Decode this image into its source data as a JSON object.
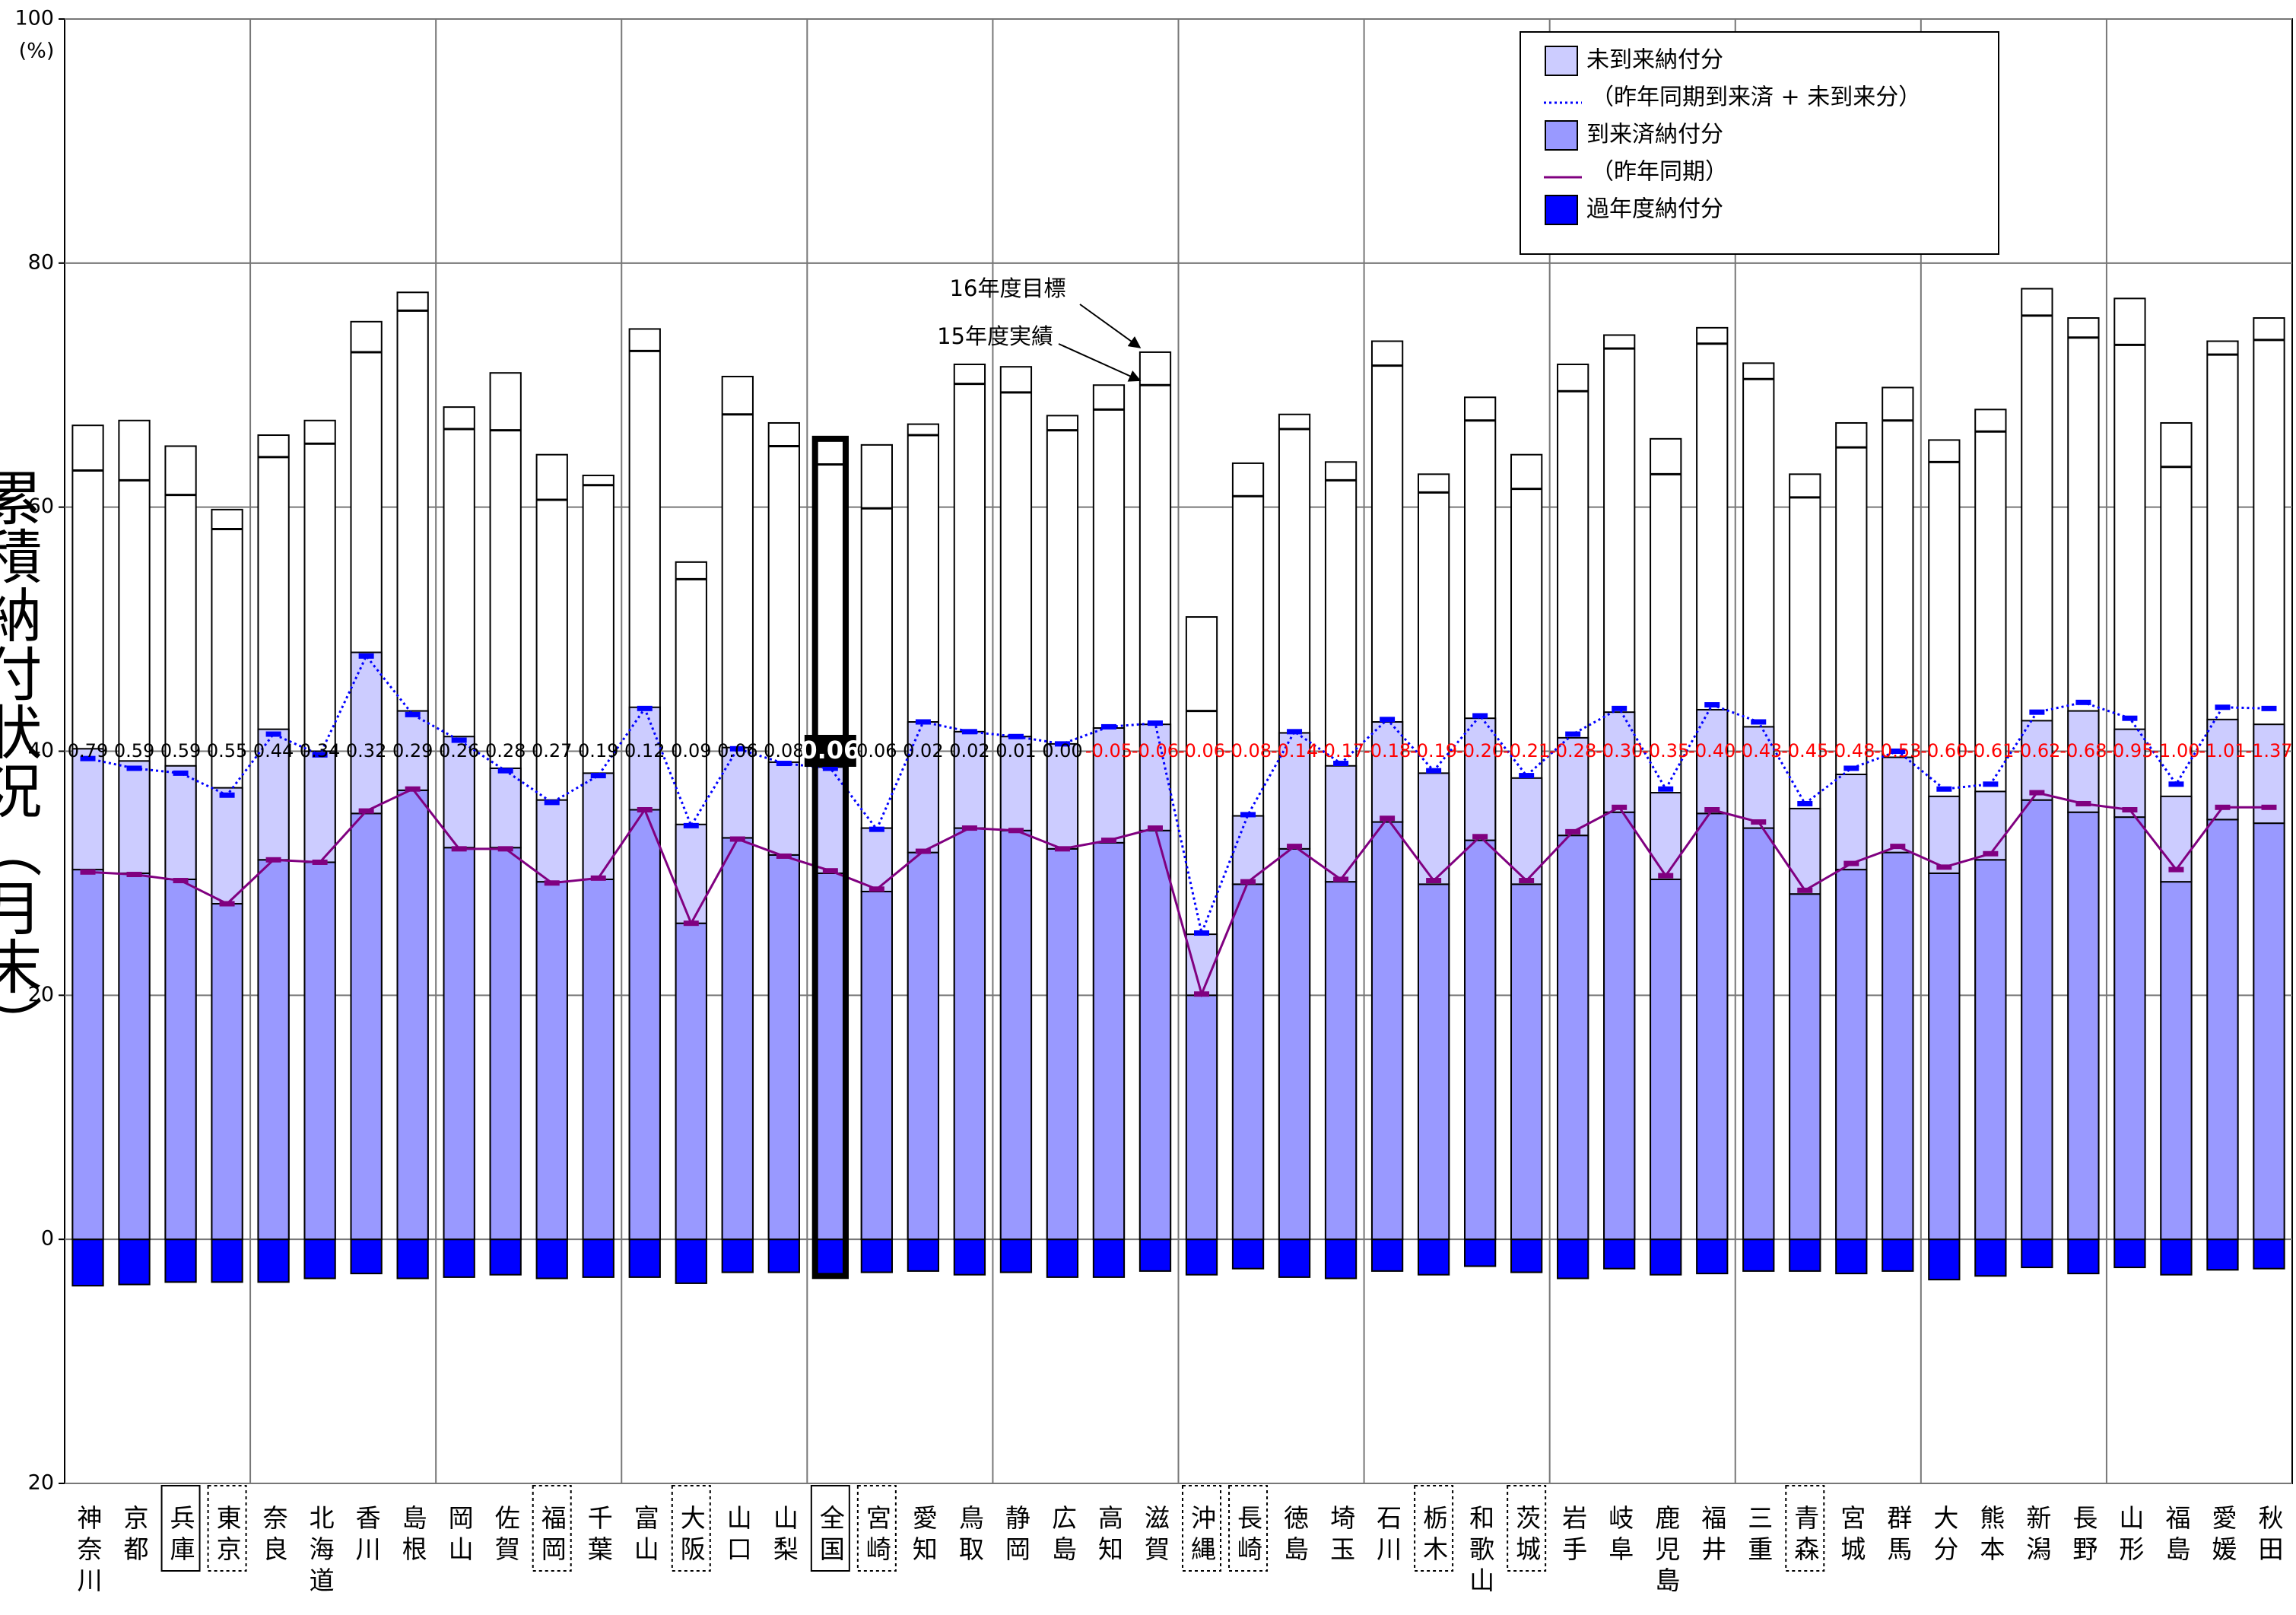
{
  "chart_data": {
    "type": "bar",
    "y_label": "累積納付状況（月末）",
    "y_unit": "(%)",
    "categories": [
      "神奈川",
      "京都",
      "兵庫",
      "東京",
      "奈良",
      "北海道",
      "香川",
      "島根",
      "岡山",
      "佐賀",
      "福岡",
      "千葉",
      "富山",
      "大阪",
      "山口",
      "山梨",
      "全国",
      "宮崎",
      "愛知",
      "鳥取",
      "静岡",
      "広島",
      "高知",
      "滋賀",
      "沖縄",
      "長崎",
      "徳島",
      "埼玉",
      "石川",
      "栃木",
      "和歌山",
      "茨城",
      "岩手",
      "岐阜",
      "鹿児島",
      "福井",
      "三重",
      "青森",
      "宮城",
      "群馬",
      "大分",
      "熊本",
      "新潟",
      "長野",
      "山形",
      "福島",
      "愛媛",
      "秋田"
    ],
    "series": [
      {
        "name": "未到来納付分",
        "type": "bar",
        "color": "#ccccff",
        "values": [
          9.9,
          9.2,
          9.3,
          9.5,
          10.7,
          9.1,
          13.2,
          6.5,
          9.1,
          6.5,
          6.7,
          8.7,
          8.4,
          8.1,
          7.4,
          7.6,
          8.7,
          5.2,
          10.7,
          7.9,
          7.7,
          8.6,
          9.4,
          8.7,
          5.0,
          5.6,
          9.5,
          9.5,
          8.2,
          9.1,
          10.0,
          8.7,
          8.0,
          8.2,
          7.1,
          8.5,
          8.3,
          7.0,
          7.8,
          7.8,
          6.3,
          5.6,
          6.5,
          8.3,
          7.2,
          7.0,
          8.2,
          8.1
        ]
      },
      {
        "name": "（昨年同期到来済 + 未到来分）",
        "type": "line",
        "dash": "dotted",
        "color": "#0000ff",
        "values": [
          39.4,
          38.6,
          38.2,
          36.4,
          41.4,
          39.7,
          47.8,
          43.0,
          40.9,
          38.4,
          35.8,
          38.0,
          43.5,
          33.9,
          40.2,
          39.0,
          38.6,
          33.6,
          42.4,
          41.6,
          41.2,
          40.6,
          42.0,
          42.3,
          25.1,
          34.8,
          41.6,
          39.0,
          42.6,
          38.4,
          42.9,
          38.0,
          41.4,
          43.5,
          36.9,
          43.8,
          42.4,
          35.7,
          38.6,
          40.0,
          36.9,
          37.3,
          43.2,
          44.0,
          42.7,
          37.3,
          43.6,
          43.5
        ]
      },
      {
        "name": "到来済納付分",
        "type": "bar",
        "color": "#9999ff",
        "values": [
          30.3,
          30.0,
          29.5,
          27.5,
          31.1,
          30.9,
          34.9,
          36.8,
          32.1,
          32.1,
          29.3,
          29.5,
          35.2,
          25.9,
          32.9,
          31.5,
          30.0,
          28.5,
          31.7,
          33.7,
          33.5,
          32.0,
          32.5,
          33.5,
          20.0,
          29.1,
          32.0,
          29.3,
          34.2,
          29.1,
          32.7,
          29.1,
          33.1,
          35.0,
          29.5,
          34.9,
          33.7,
          28.3,
          30.3,
          31.7,
          30.0,
          31.1,
          36.0,
          35.0,
          34.6,
          29.3,
          34.4,
          34.1
        ]
      },
      {
        "name": "（昨年同期）",
        "type": "line",
        "dash": "solid",
        "color": "#800080",
        "values": [
          30.1,
          29.9,
          29.4,
          27.5,
          31.1,
          30.9,
          35.1,
          36.9,
          32.0,
          32.0,
          29.2,
          29.6,
          35.2,
          25.9,
          32.8,
          31.4,
          30.2,
          28.7,
          31.8,
          33.7,
          33.5,
          32.0,
          32.7,
          33.7,
          20.1,
          29.3,
          32.2,
          29.5,
          34.5,
          29.4,
          33.0,
          29.4,
          33.4,
          35.4,
          29.8,
          35.2,
          34.2,
          28.6,
          30.8,
          32.2,
          30.5,
          31.6,
          36.6,
          35.7,
          35.2,
          30.3,
          35.4,
          35.4
        ]
      },
      {
        "name": "過年度納付分",
        "type": "bar",
        "color": "#0000ff",
        "values": [
          -3.8,
          -3.7,
          -3.5,
          -3.5,
          -3.5,
          -3.2,
          -2.8,
          -3.2,
          -3.1,
          -2.9,
          -3.2,
          -3.1,
          -3.1,
          -3.6,
          -2.7,
          -2.7,
          -3.0,
          -2.7,
          -2.6,
          -2.9,
          -2.7,
          -3.1,
          -3.1,
          -2.6,
          -2.9,
          -2.4,
          -3.1,
          -3.2,
          -2.6,
          -2.9,
          -2.2,
          -2.7,
          -3.2,
          -2.4,
          -2.9,
          -2.8,
          -2.6,
          -2.6,
          -2.8,
          -2.6,
          -3.3,
          -3.0,
          -2.3,
          -2.8,
          -2.3,
          -2.9,
          -2.5,
          -2.4
        ]
      }
    ],
    "target_values": [
      66.7,
      67.1,
      65.0,
      59.8,
      65.9,
      67.1,
      75.2,
      77.6,
      68.2,
      71.0,
      64.3,
      62.6,
      74.6,
      55.5,
      70.7,
      66.9,
      65.6,
      65.1,
      66.8,
      71.7,
      71.5,
      67.5,
      70.0,
      72.7,
      51.0,
      63.6,
      67.6,
      63.7,
      73.6,
      62.7,
      69.0,
      64.3,
      71.7,
      74.1,
      65.6,
      74.7,
      71.8,
      62.7,
      66.9,
      69.8,
      65.5,
      68.0,
      77.9,
      75.5,
      77.1,
      66.9,
      73.6,
      75.5
    ],
    "previous_result_values": [
      63.0,
      62.2,
      61.0,
      58.2,
      64.1,
      65.2,
      72.7,
      76.1,
      66.4,
      66.3,
      60.6,
      61.8,
      72.8,
      54.1,
      67.6,
      65.0,
      63.5,
      59.9,
      65.9,
      70.1,
      69.4,
      66.3,
      68.0,
      70.0,
      43.3,
      60.9,
      66.4,
      62.2,
      71.6,
      61.2,
      67.1,
      61.5,
      69.5,
      73.0,
      62.7,
      73.4,
      70.5,
      60.8,
      64.9,
      67.1,
      63.7,
      66.2,
      75.7,
      73.9,
      73.3,
      63.3,
      72.5,
      73.7
    ],
    "annotations": [
      "16年度目標",
      "15年度実績"
    ],
    "differences": {
      "positive_color": "#000000",
      "negative_color": "#ff0000",
      "values": [
        0.79,
        0.59,
        0.59,
        0.55,
        0.44,
        0.34,
        0.32,
        0.29,
        0.26,
        0.28,
        0.27,
        0.19,
        0.12,
        0.09,
        0.06,
        0.08,
        0.06,
        0.06,
        0.02,
        0.02,
        0.01,
        0,
        -0.05,
        -0.06,
        -0.06,
        -0.08,
        -0.14,
        -0.17,
        -0.18,
        -0.19,
        -0.2,
        -0.21,
        -0.28,
        -0.3,
        -0.35,
        -0.4,
        -0.43,
        -0.45,
        -0.48,
        -0.53,
        -0.6,
        -0.61,
        -0.62,
        -0.68,
        -0.95,
        -1,
        -1.01,
        -1.37
      ],
      "value_labels": [
        "0.79",
        "0.59",
        "0.59",
        "0.55",
        "0.44",
        "0.34",
        "0.32",
        "0.29",
        "0.26",
        "0.28",
        "0.27",
        "0.19",
        "0.12",
        "0.09",
        "0.06",
        "0.08",
        "0.06",
        "0.06",
        "0.02",
        "0.02",
        "0.01",
        "0.00",
        "-0.05",
        "-0.06",
        "-0.06",
        "-0.08",
        "-0.14",
        "-0.17",
        "-0.18",
        "-0.19",
        "-0.20",
        "-0.21",
        "-0.28",
        "-0.30",
        "-0.35",
        "-0.40",
        "-0.43",
        "-0.45",
        "-0.48",
        "-0.53",
        "-0.60",
        "-0.61",
        "-0.62",
        "-0.68",
        "-0.95",
        "-1.00",
        "-1.01",
        "-1.37"
      ]
    },
    "ylim": [
      -20,
      100
    ],
    "yticks": [
      {
        "value": -20,
        "label": "20"
      },
      0,
      20,
      40,
      60,
      80,
      100
    ],
    "grid": true,
    "legend": "upper right"
  }
}
